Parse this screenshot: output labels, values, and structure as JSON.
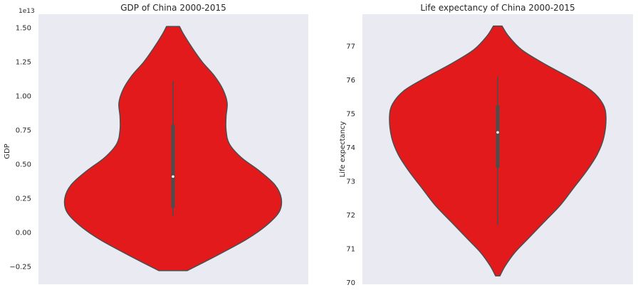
{
  "chart_data": [
    {
      "type": "violin",
      "title": "GDP of China 2000-2015",
      "xlabel": "",
      "ylabel": "GDP",
      "offset_label": "1e13",
      "ylim": [
        -0.38,
        1.6
      ],
      "yticks": [
        -0.25,
        0.0,
        0.25,
        0.5,
        0.75,
        1.0,
        1.25,
        1.5
      ],
      "ytick_labels": [
        "−0.25",
        "0.00",
        "0.25",
        "0.50",
        "0.75",
        "1.00",
        "1.25",
        "1.50"
      ],
      "grid": false,
      "fill_color": "#e31a1c",
      "edge_color": "#4d4d4d",
      "background_color": "#eaeaf2",
      "density_profile": [
        [
          -0.28,
          0.13
        ],
        [
          -0.22,
          0.28
        ],
        [
          -0.15,
          0.45
        ],
        [
          -0.05,
          0.68
        ],
        [
          0.05,
          0.86
        ],
        [
          0.15,
          0.98
        ],
        [
          0.25,
          1.0
        ],
        [
          0.35,
          0.94
        ],
        [
          0.45,
          0.8
        ],
        [
          0.55,
          0.63
        ],
        [
          0.65,
          0.52
        ],
        [
          0.75,
          0.49
        ],
        [
          0.85,
          0.49
        ],
        [
          0.95,
          0.5
        ],
        [
          1.05,
          0.46
        ],
        [
          1.15,
          0.38
        ],
        [
          1.25,
          0.27
        ],
        [
          1.35,
          0.18
        ],
        [
          1.45,
          0.1
        ],
        [
          1.51,
          0.06
        ]
      ],
      "box": {
        "whisker_low": 0.12,
        "q1": 0.18,
        "median": 0.41,
        "q3": 0.79,
        "whisker_high": 1.11
      }
    },
    {
      "type": "violin",
      "title": "Life expectancy of China 2000-2015",
      "xlabel": "",
      "ylabel": "Life expectancy",
      "ylim": [
        69.95,
        77.95
      ],
      "yticks": [
        70,
        71,
        72,
        73,
        74,
        75,
        76,
        77
      ],
      "ytick_labels": [
        "70",
        "71",
        "72",
        "73",
        "74",
        "75",
        "76",
        "77"
      ],
      "grid": false,
      "fill_color": "#e31a1c",
      "edge_color": "#4d4d4d",
      "background_color": "#eaeaf2",
      "density_profile": [
        [
          70.2,
          0.02
        ],
        [
          70.5,
          0.07
        ],
        [
          70.9,
          0.16
        ],
        [
          71.3,
          0.28
        ],
        [
          71.8,
          0.43
        ],
        [
          72.3,
          0.58
        ],
        [
          72.8,
          0.7
        ],
        [
          73.3,
          0.82
        ],
        [
          73.8,
          0.92
        ],
        [
          74.3,
          0.98
        ],
        [
          74.9,
          1.0
        ],
        [
          75.3,
          0.97
        ],
        [
          75.7,
          0.86
        ],
        [
          76.1,
          0.65
        ],
        [
          76.5,
          0.42
        ],
        [
          76.9,
          0.22
        ],
        [
          77.3,
          0.1
        ],
        [
          77.6,
          0.04
        ]
      ],
      "box": {
        "whisker_low": 71.7,
        "q1": 73.4,
        "median": 74.45,
        "q3": 75.25,
        "whisker_high": 76.1
      }
    }
  ]
}
